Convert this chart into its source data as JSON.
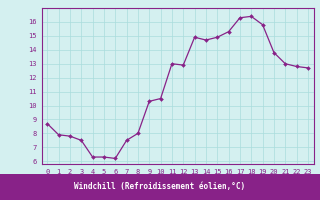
{
  "x": [
    0,
    1,
    2,
    3,
    4,
    5,
    6,
    7,
    8,
    9,
    10,
    11,
    12,
    13,
    14,
    15,
    16,
    17,
    18,
    19,
    20,
    21,
    22,
    23
  ],
  "y": [
    8.7,
    7.9,
    7.8,
    7.5,
    6.3,
    6.3,
    6.2,
    7.5,
    8.0,
    10.3,
    10.5,
    13.0,
    12.9,
    14.9,
    14.7,
    14.9,
    15.3,
    16.3,
    16.4,
    15.8,
    13.8,
    13.0,
    12.8,
    12.7
  ],
  "line_color": "#882288",
  "marker": "D",
  "marker_size": 2.0,
  "bg_color": "#d4f0f0",
  "grid_color": "#aadddd",
  "xlabel": "Windchill (Refroidissement éolien,°C)",
  "xlabel_bg": "#882288",
  "xlabel_fg": "#ffffff",
  "ylim_min": 5.8,
  "ylim_max": 17.0,
  "xlim_min": -0.5,
  "xlim_max": 23.5,
  "yticks": [
    6,
    7,
    8,
    9,
    10,
    11,
    12,
    13,
    14,
    15,
    16
  ],
  "xticks": [
    0,
    1,
    2,
    3,
    4,
    5,
    6,
    7,
    8,
    9,
    10,
    11,
    12,
    13,
    14,
    15,
    16,
    17,
    18,
    19,
    20,
    21,
    22,
    23
  ],
  "tick_color": "#882288",
  "spine_color": "#882288",
  "linewidth": 0.9,
  "tick_fontsize": 5.0,
  "xlabel_fontsize": 5.5
}
